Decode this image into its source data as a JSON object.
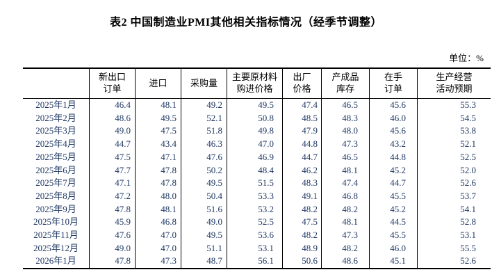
{
  "page": {
    "title": "表2 中国制造业PMI其他相关指标情况（经季节调整）",
    "unit_label": "单位：%"
  },
  "colors": {
    "data_text": "#1F3864",
    "heading_text": "#000000",
    "border": "#000000",
    "background": "#ffffff"
  },
  "table": {
    "columns": [
      "",
      "新出口\n订单",
      "进口",
      "采购量",
      "主要原材料\n购进价格",
      "出厂\n价格",
      "产成品\n库存",
      "在手\n订单",
      "生产经营\n活动预期"
    ],
    "rows": [
      {
        "month": "2025年1月",
        "values": [
          "46.4",
          "48.1",
          "49.2",
          "49.5",
          "47.4",
          "46.5",
          "45.6",
          "55.3"
        ]
      },
      {
        "month": "2025年2月",
        "values": [
          "48.6",
          "49.5",
          "52.1",
          "50.8",
          "48.5",
          "48.3",
          "46.0",
          "54.5"
        ]
      },
      {
        "month": "2025年3月",
        "values": [
          "49.0",
          "47.5",
          "51.8",
          "49.8",
          "47.9",
          "48.0",
          "45.6",
          "53.8"
        ]
      },
      {
        "month": "2025年4月",
        "values": [
          "44.7",
          "43.4",
          "46.3",
          "47.0",
          "44.8",
          "47.3",
          "43.2",
          "52.1"
        ]
      },
      {
        "month": "2025年5月",
        "values": [
          "47.5",
          "47.1",
          "47.6",
          "46.9",
          "44.7",
          "46.5",
          "44.8",
          "52.5"
        ]
      },
      {
        "month": "2025年6月",
        "values": [
          "47.7",
          "47.8",
          "50.2",
          "48.4",
          "46.2",
          "48.1",
          "45.2",
          "52.0"
        ]
      },
      {
        "month": "2025年7月",
        "values": [
          "47.1",
          "47.8",
          "49.5",
          "51.5",
          "48.3",
          "47.4",
          "44.7",
          "52.6"
        ]
      },
      {
        "month": "2025年8月",
        "values": [
          "47.2",
          "48.0",
          "50.4",
          "53.3",
          "49.1",
          "46.8",
          "45.5",
          "53.7"
        ]
      },
      {
        "month": "2025年9月",
        "values": [
          "47.8",
          "48.1",
          "51.6",
          "53.2",
          "48.2",
          "48.2",
          "45.2",
          "54.1"
        ]
      },
      {
        "month": "2025年10月",
        "values": [
          "45.9",
          "46.8",
          "49.0",
          "52.5",
          "47.5",
          "48.1",
          "44.5",
          "52.8"
        ]
      },
      {
        "month": "2025年11月",
        "values": [
          "47.6",
          "47.0",
          "49.5",
          "53.6",
          "48.2",
          "47.3",
          "45.5",
          "53.1"
        ]
      },
      {
        "month": "2025年12月",
        "values": [
          "49.0",
          "47.0",
          "51.1",
          "53.1",
          "48.9",
          "48.2",
          "46.0",
          "55.5"
        ]
      },
      {
        "month": "2026年1月",
        "values": [
          "47.8",
          "47.3",
          "48.7",
          "56.1",
          "50.6",
          "48.6",
          "45.1",
          "52.6"
        ]
      }
    ]
  }
}
